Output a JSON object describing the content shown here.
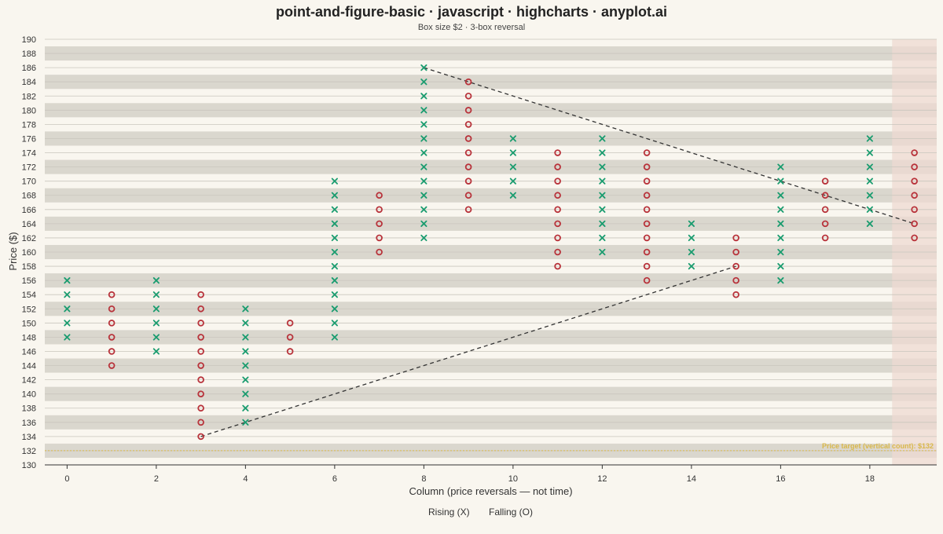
{
  "chart_data": {
    "type": "point-and-figure",
    "title": "point-and-figure-basic · javascript · highcharts · anyplot.ai",
    "subtitle": "Box size $2 · 3-box reversal",
    "xlabel": "Column (price reversals — not time)",
    "ylabel": "Price ($)",
    "xlim": [
      -0.5,
      19.5
    ],
    "ylim": [
      130,
      190
    ],
    "x_ticks": [
      0,
      2,
      4,
      6,
      8,
      10,
      12,
      14,
      16,
      18
    ],
    "y_ticks": [
      130,
      132,
      134,
      136,
      138,
      140,
      142,
      144,
      146,
      148,
      150,
      152,
      154,
      156,
      158,
      160,
      162,
      164,
      166,
      168,
      170,
      172,
      174,
      176,
      178,
      180,
      182,
      184,
      186,
      188,
      190
    ],
    "box_size": 2,
    "reversal": 3,
    "grid": true,
    "legend_position": "bottom-center",
    "colors": {
      "rising": "#1a9c6f",
      "falling": "#b8333b",
      "trendline": "#333333",
      "target": "#d9b84a",
      "band": "#dad7ce",
      "highlight": "#eed9d2"
    },
    "series": [
      {
        "name": "Rising (X)",
        "symbol": "X",
        "columns": [
          {
            "x": 0,
            "low": 148,
            "high": 156
          },
          {
            "x": 2,
            "low": 146,
            "high": 156
          },
          {
            "x": 4,
            "low": 136,
            "high": 152
          },
          {
            "x": 6,
            "low": 148,
            "high": 170
          },
          {
            "x": 8,
            "low": 162,
            "high": 186
          },
          {
            "x": 10,
            "low": 168,
            "high": 176
          },
          {
            "x": 12,
            "low": 160,
            "high": 176
          },
          {
            "x": 14,
            "low": 158,
            "high": 164
          },
          {
            "x": 16,
            "low": 156,
            "high": 172
          },
          {
            "x": 18,
            "low": 164,
            "high": 176
          }
        ]
      },
      {
        "name": "Falling (O)",
        "symbol": "O",
        "columns": [
          {
            "x": 1,
            "low": 144,
            "high": 154
          },
          {
            "x": 3,
            "low": 134,
            "high": 154
          },
          {
            "x": 5,
            "low": 146,
            "high": 150
          },
          {
            "x": 7,
            "low": 160,
            "high": 168
          },
          {
            "x": 9,
            "low": 166,
            "high": 184
          },
          {
            "x": 11,
            "low": 158,
            "high": 174
          },
          {
            "x": 13,
            "low": 156,
            "high": 174
          },
          {
            "x": 15,
            "low": 154,
            "high": 162
          },
          {
            "x": 17,
            "low": 162,
            "high": 170
          },
          {
            "x": 19,
            "low": 162,
            "high": 174
          }
        ]
      }
    ],
    "trendlines": [
      {
        "from": [
          3,
          134
        ],
        "to": [
          15,
          158
        ]
      },
      {
        "from": [
          8,
          186
        ],
        "to": [
          19,
          164
        ]
      }
    ],
    "target": {
      "y": 132,
      "label": "Price target (vertical count): $132"
    },
    "highlight_column": 19
  }
}
